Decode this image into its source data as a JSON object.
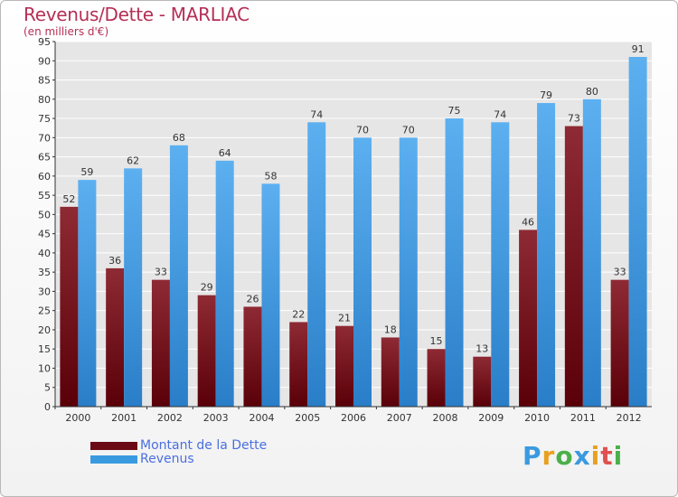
{
  "header": {
    "title": "Revenus/Dette - MARLIAC",
    "subtitle": "(en milliers d'€)"
  },
  "colors": {
    "dette": "#7a1520",
    "revenus": "#3a9ae0",
    "text": "#b52f56",
    "legend_text": "#4a6fe0",
    "axis": "#333333",
    "grid": "#ffffff"
  },
  "chart_data": {
    "type": "bar",
    "title": "Revenus/Dette - MARLIAC",
    "subtitle": "(en milliers d'€)",
    "categories": [
      "2000",
      "2001",
      "2002",
      "2003",
      "2004",
      "2005",
      "2006",
      "2007",
      "2008",
      "2009",
      "2010",
      "2011",
      "2012"
    ],
    "series": [
      {
        "name": "Montant de la Dette",
        "values": [
          52,
          36,
          33,
          29,
          26,
          22,
          21,
          18,
          15,
          13,
          46,
          73,
          33
        ]
      },
      {
        "name": "Revenus",
        "values": [
          59,
          62,
          68,
          64,
          58,
          74,
          70,
          70,
          75,
          74,
          79,
          80,
          91
        ]
      }
    ],
    "ylim": [
      0,
      95
    ],
    "yticks": [
      0,
      5,
      10,
      15,
      20,
      25,
      30,
      35,
      40,
      45,
      50,
      55,
      60,
      65,
      70,
      75,
      80,
      85,
      90,
      95
    ],
    "legend_position": "bottom-left",
    "grid": true,
    "data_labels": true
  },
  "logo": {
    "letters": [
      "P",
      "r",
      "o",
      "x",
      "i",
      "t",
      "i"
    ],
    "colors": [
      "#3a9ae0",
      "#e8a020",
      "#4ab04a",
      "#3a9ae0",
      "#e8a020",
      "#e05050",
      "#4ab04a"
    ]
  }
}
